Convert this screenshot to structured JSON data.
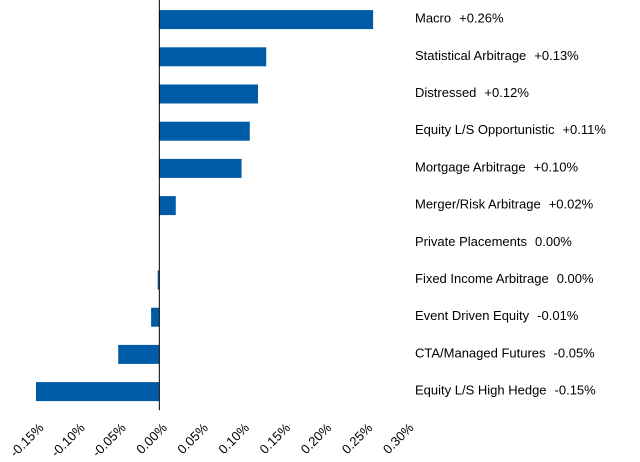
{
  "chart_data": {
    "type": "hbar",
    "categories": [
      "Macro",
      "Statistical Arbitrage",
      "Distressed",
      "Equity L/S Opportunistic",
      "Mortgage Arbitrage",
      "Merger/Risk Arbitrage",
      "Private Placements",
      "Fixed Income Arbitrage",
      "Event Driven Equity",
      "CTA/Managed Futures",
      "Equity L/S High Hedge"
    ],
    "values": [
      0.26,
      0.13,
      0.12,
      0.11,
      0.1,
      0.02,
      0.0,
      -0.002,
      -0.01,
      -0.05,
      -0.15
    ],
    "value_labels": [
      "+0.26%",
      "+0.13%",
      "+0.12%",
      "+0.11%",
      "+0.10%",
      "+0.02%",
      "0.00%",
      "0.00%",
      "-0.01%",
      "-0.05%",
      "-0.15%"
    ],
    "color": "#005ba6",
    "xlim": [
      -0.15,
      0.3
    ],
    "xticks": [
      {
        "value": -0.15,
        "label": "-0.15%"
      },
      {
        "value": -0.1,
        "label": "-0.10%"
      },
      {
        "value": -0.05,
        "label": "-0.05%"
      },
      {
        "value": 0,
        "label": "0.00%"
      },
      {
        "value": 0.05,
        "label": "0.05%"
      },
      {
        "value": 0.1,
        "label": "0.10%"
      },
      {
        "value": 0.15,
        "label": "0.15%"
      },
      {
        "value": 0.2,
        "label": "0.20%"
      },
      {
        "value": 0.25,
        "label": "0.25%"
      },
      {
        "value": 0.3,
        "label": "0.30%"
      }
    ]
  }
}
